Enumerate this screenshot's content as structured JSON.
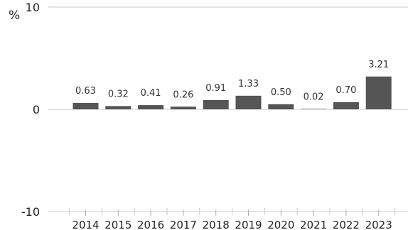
{
  "chart_data": {
    "type": "bar",
    "unit": "%",
    "categories": [
      "2014",
      "2015",
      "2016",
      "2017",
      "2018",
      "2019",
      "2020",
      "2021",
      "2022",
      "2023"
    ],
    "values": [
      0.63,
      0.32,
      0.41,
      0.26,
      0.91,
      1.33,
      0.5,
      0.02,
      0.7,
      3.21
    ],
    "value_labels": [
      "0.63",
      "0.32",
      "0.41",
      "0.26",
      "0.91",
      "1.33",
      "0.50",
      "0.02",
      "0.70",
      "3.21"
    ],
    "y_ticks": [
      "10",
      "0",
      "-10"
    ],
    "ylim": [
      -10,
      10
    ],
    "grid": "horizontal",
    "bar_color": "#555555",
    "grid_color": "#c8c8c8"
  }
}
